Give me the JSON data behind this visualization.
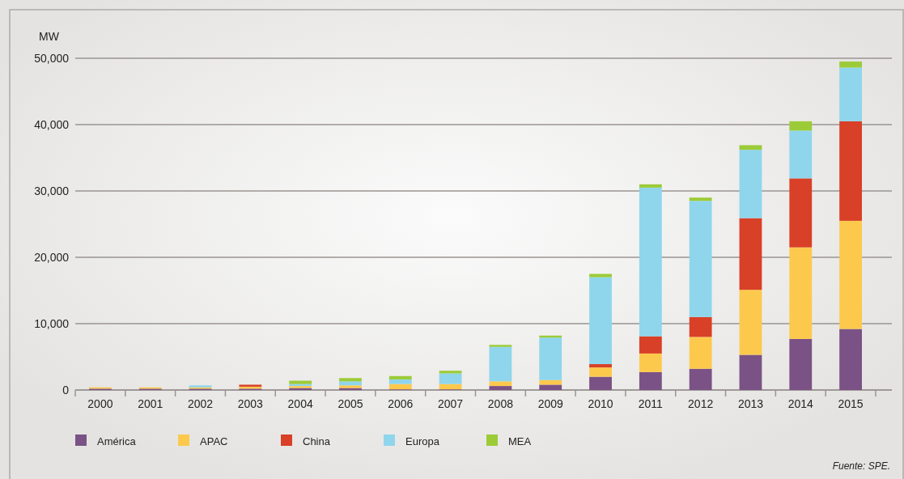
{
  "chart_data": {
    "type": "bar",
    "stacked": true,
    "ylabel": "MW",
    "categories": [
      "2000",
      "2001",
      "2002",
      "2003",
      "2004",
      "2005",
      "2006",
      "2007",
      "2008",
      "2009",
      "2010",
      "2011",
      "2012",
      "2013",
      "2014",
      "2015"
    ],
    "series": [
      {
        "name": "América",
        "color": "#7b5285",
        "values": [
          200,
          200,
          200,
          200,
          300,
          300,
          100,
          100,
          600,
          800,
          2000,
          2700,
          3200,
          5300,
          7700,
          9200
        ]
      },
      {
        "name": "APAC",
        "color": "#fdc94c",
        "values": [
          200,
          200,
          200,
          300,
          300,
          400,
          800,
          800,
          700,
          700,
          1400,
          2800,
          4800,
          9800,
          13800,
          16300
        ]
      },
      {
        "name": "China",
        "color": "#d84027",
        "values": [
          0,
          0,
          0,
          300,
          0,
          0,
          0,
          0,
          0,
          0,
          500,
          2600,
          3000,
          10800,
          10400,
          15000
        ]
      },
      {
        "name": "Europa",
        "color": "#8fd6ec",
        "values": [
          0,
          0,
          300,
          0,
          300,
          600,
          700,
          1600,
          5200,
          6400,
          13100,
          22400,
          17500,
          10300,
          7200,
          8100
        ]
      },
      {
        "name": "MEA",
        "color": "#9ccb38",
        "values": [
          0,
          0,
          0,
          0,
          500,
          500,
          500,
          400,
          300,
          300,
          500,
          500,
          500,
          700,
          1400,
          900
        ]
      }
    ],
    "ylim": [
      0,
      50000
    ],
    "yticks": [
      {
        "value": 0,
        "label": "0"
      },
      {
        "value": 10000,
        "label": "10,000"
      },
      {
        "value": 20000,
        "label": "20,000"
      },
      {
        "value": 30000,
        "label": "30,000"
      },
      {
        "value": 40000,
        "label": "40,000"
      },
      {
        "value": 50000,
        "label": "50,000"
      }
    ],
    "grid": "y",
    "legend": "bottom",
    "annotations": [
      "Fuente: SPE."
    ]
  }
}
